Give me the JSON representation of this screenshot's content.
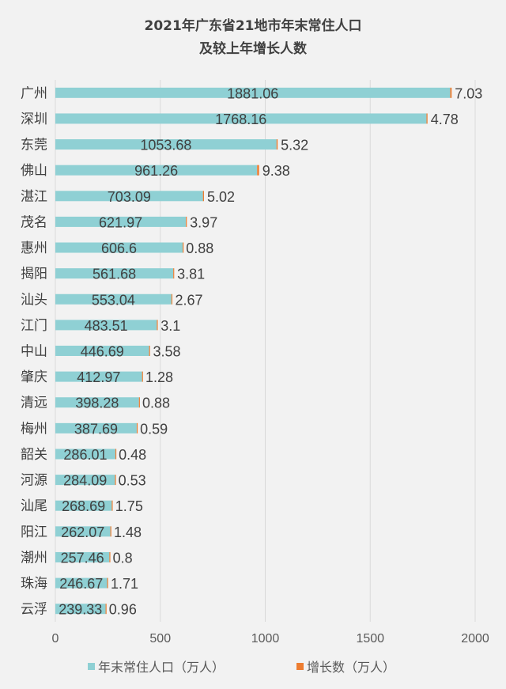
{
  "chart_data": {
    "type": "bar",
    "orientation": "horizontal",
    "stacked": true,
    "title_lines": [
      "2021年广东省21地市年末常住人口",
      "及较上年增长人数"
    ],
    "categories": [
      "广州",
      "深圳",
      "东莞",
      "佛山",
      "湛江",
      "茂名",
      "惠州",
      "揭阳",
      "汕头",
      "江门",
      "中山",
      "肇庆",
      "清远",
      "梅州",
      "韶关",
      "河源",
      "汕尾",
      "阳江",
      "潮州",
      "珠海",
      "云浮"
    ],
    "series": [
      {
        "name": "年末常住人口（万人）",
        "color": "#8fd0d4",
        "values": [
          1881.06,
          1768.16,
          1053.68,
          961.26,
          703.09,
          621.97,
          606.6,
          561.68,
          553.04,
          483.51,
          446.69,
          412.97,
          398.28,
          387.69,
          286.01,
          284.09,
          268.69,
          262.07,
          257.46,
          246.67,
          239.33
        ]
      },
      {
        "name": "增长数（万人）",
        "color": "#ed7d31",
        "values": [
          7.03,
          4.78,
          5.32,
          9.38,
          5.02,
          3.97,
          0.88,
          3.81,
          2.67,
          3.1,
          3.58,
          1.28,
          0.88,
          0.59,
          0.48,
          0.53,
          1.75,
          1.48,
          0.8,
          1.71,
          0.96
        ]
      }
    ],
    "xlim": [
      0,
      2000
    ],
    "xticks": [
      0,
      500,
      1000,
      1500,
      2000
    ],
    "grid": true,
    "legend_position": "bottom"
  }
}
